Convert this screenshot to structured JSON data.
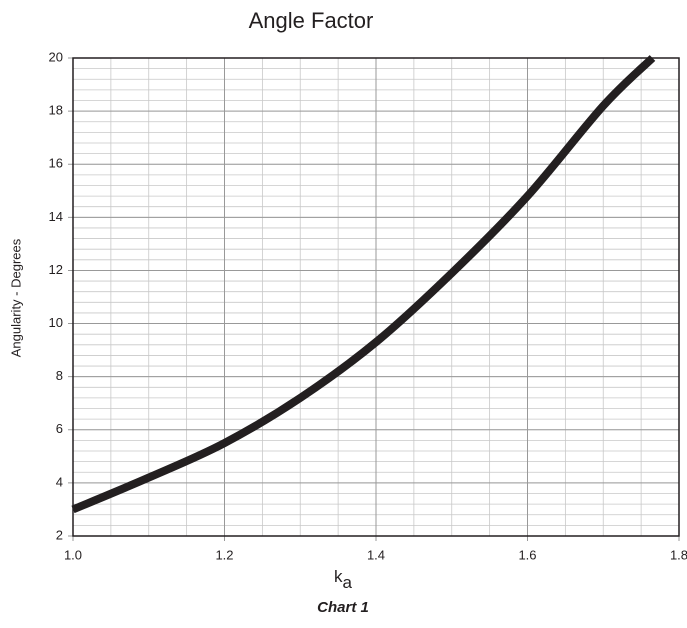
{
  "chart_data": {
    "type": "line",
    "title": "Angle Factor",
    "y_label": "Angularity - Degrees",
    "x_label": "k",
    "x_label_subscript": "a",
    "caption": "Chart 1",
    "series": [
      {
        "name": "Angle factor",
        "color": "#231f20",
        "x": [
          1.0,
          1.1,
          1.2,
          1.3,
          1.4,
          1.5,
          1.6,
          1.7,
          1.765
        ],
        "values": [
          3.0,
          4.2,
          5.5,
          7.2,
          9.3,
          11.9,
          14.8,
          18.2,
          20
        ]
      }
    ],
    "xlim": [
      1.0,
      1.8
    ],
    "ylim": [
      2,
      20
    ],
    "xticks": [
      {
        "value": 1.0,
        "label": "1.0"
      },
      1.2,
      1.4,
      1.6,
      1.8
    ],
    "yticks": [
      2,
      4,
      6,
      8,
      10,
      12,
      14,
      16,
      18,
      20
    ],
    "grid": true,
    "minor_grid": {
      "x": 0.05,
      "y": 0.4
    }
  }
}
